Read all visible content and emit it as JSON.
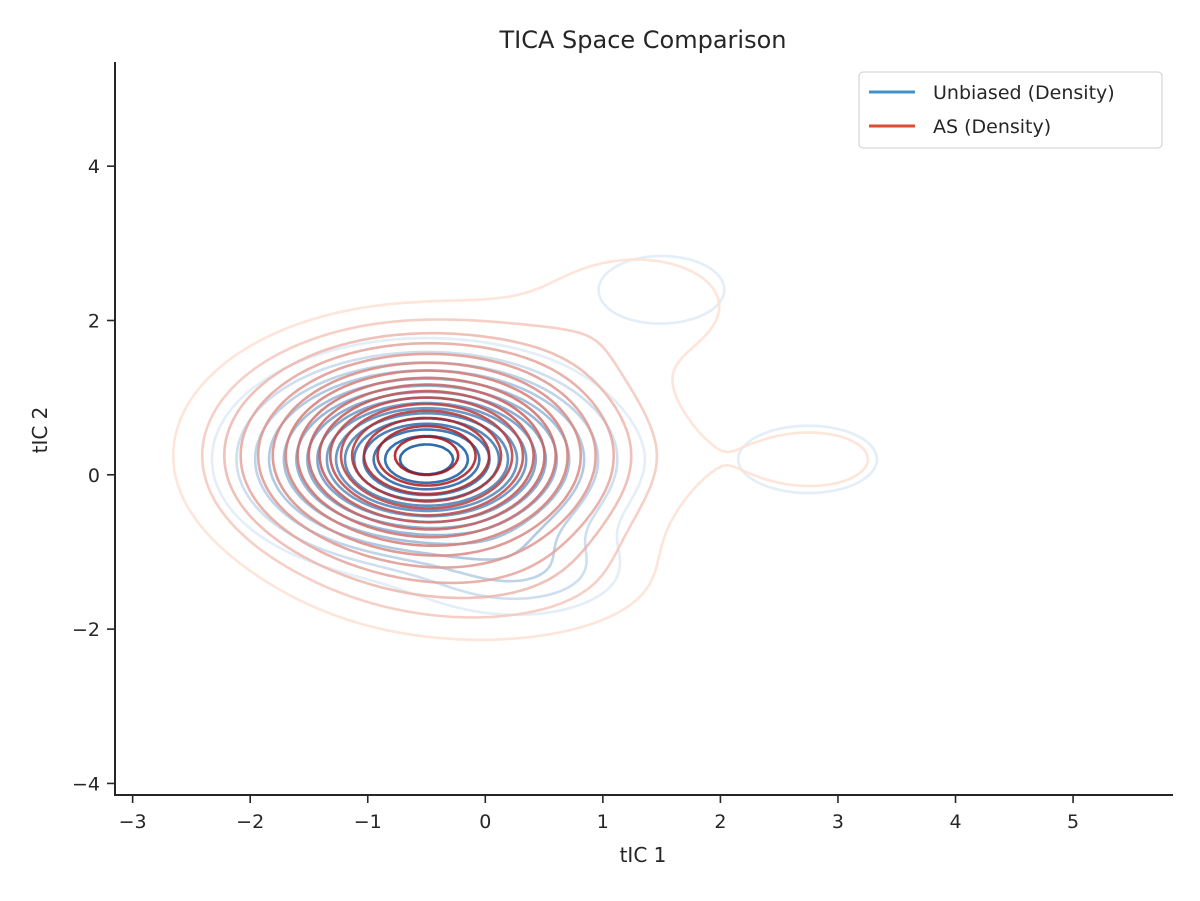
{
  "chart_data": {
    "type": "contour",
    "title": "TICA Space Comparison",
    "xlabel": "tIC 1",
    "ylabel": "tIC 2",
    "xlim": [
      -3.15,
      5.85
    ],
    "ylim": [
      -4.15,
      5.35
    ],
    "xticks": [
      -3,
      -2,
      -1,
      0,
      1,
      2,
      3,
      4,
      5
    ],
    "yticks": [
      -4,
      -2,
      0,
      2,
      4
    ],
    "grid": false,
    "legend_position": "top-right",
    "series": [
      {
        "name": "Unbiased (Density)",
        "legend_color": "#4292c6",
        "color_light": "#deebf7",
        "color_dark": "#08519c",
        "components": [
          {
            "weight": 0.62,
            "cx": -0.5,
            "cy": 0.2,
            "sx": 0.72,
            "sy": 0.62
          },
          {
            "weight": 0.07,
            "cx": 0.3,
            "cy": -1.25,
            "sx": 0.55,
            "sy": 0.38
          },
          {
            "weight": 0.04,
            "cx": 1.5,
            "cy": 2.4,
            "sx": 0.55,
            "sy": 0.45
          },
          {
            "weight": 0.04,
            "cx": 2.75,
            "cy": 0.2,
            "sx": 0.6,
            "sy": 0.45
          }
        ]
      },
      {
        "name": "AS (Density)",
        "legend_color": "#e34a33",
        "color_light": "#fee0d2",
        "color_dark": "#a50f15",
        "components": [
          {
            "weight": 0.62,
            "cx": -0.5,
            "cy": 0.25,
            "sx": 0.85,
            "sy": 0.78
          },
          {
            "weight": 0.05,
            "cx": 0.1,
            "cy": -1.4,
            "sx": 0.95,
            "sy": 0.55
          },
          {
            "weight": 0.04,
            "cx": 1.3,
            "cy": 2.2,
            "sx": 0.7,
            "sy": 0.6
          },
          {
            "weight": 0.03,
            "cx": 2.8,
            "cy": 0.2,
            "sx": 0.75,
            "sy": 0.55
          }
        ]
      }
    ],
    "levels": [
      0.025,
      0.05,
      0.08,
      0.11,
      0.15,
      0.19,
      0.23,
      0.27,
      0.31,
      0.35,
      0.39,
      0.43,
      0.47,
      0.51,
      0.55,
      0.59
    ]
  }
}
